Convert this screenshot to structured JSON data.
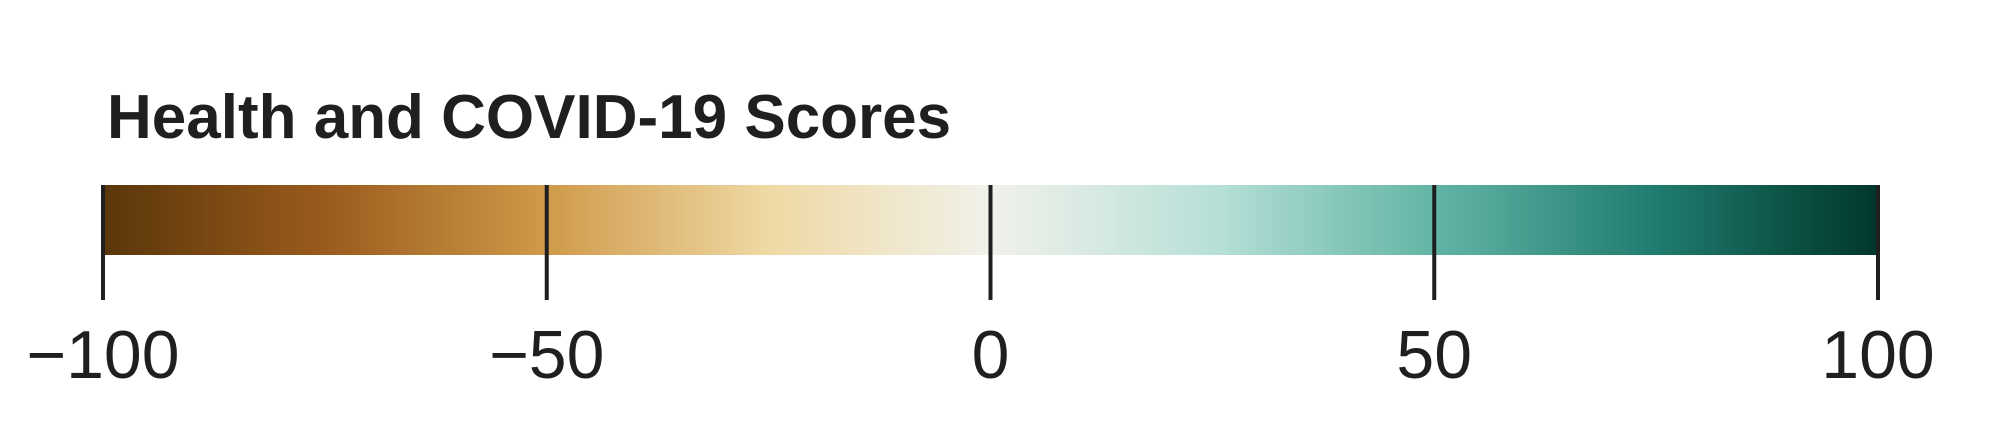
{
  "chart_data": {
    "type": "colorbar",
    "title": "Health and COVID-19 Scores",
    "domain": [
      -100,
      100
    ],
    "ticks": [
      {
        "value": -100,
        "label": "−100"
      },
      {
        "value": -50,
        "label": "−50"
      },
      {
        "value": 0,
        "label": "0"
      },
      {
        "value": 50,
        "label": "50"
      },
      {
        "value": 100,
        "label": "100"
      }
    ],
    "color_stops": [
      {
        "value": -100,
        "color": "#5a360a"
      },
      {
        "value": -75,
        "color": "#9a5b1c"
      },
      {
        "value": -50,
        "color": "#cf9a4a"
      },
      {
        "value": -25,
        "color": "#efd9a4"
      },
      {
        "value": 0,
        "color": "#f1f1ea"
      },
      {
        "value": 25,
        "color": "#b8e0d8"
      },
      {
        "value": 50,
        "color": "#62b5a6"
      },
      {
        "value": 75,
        "color": "#1f7c6e"
      },
      {
        "value": 100,
        "color": "#00362b"
      }
    ]
  }
}
